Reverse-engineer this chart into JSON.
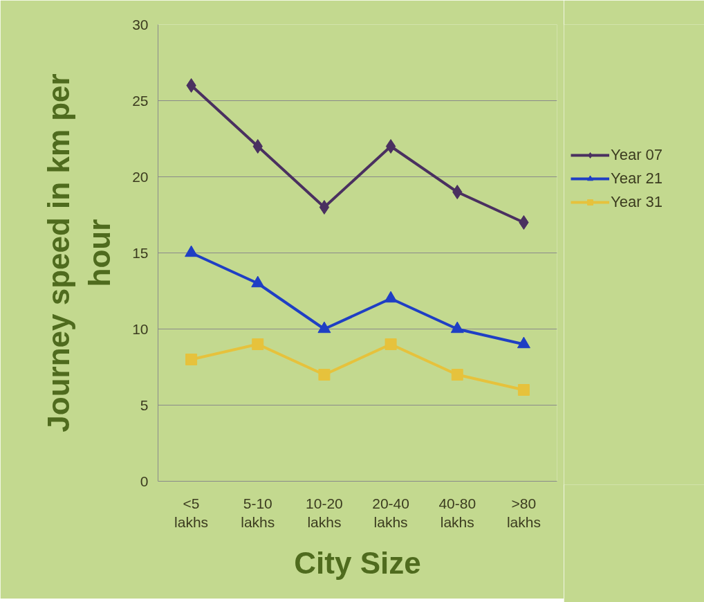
{
  "chart_data": {
    "type": "line",
    "xlabel": "City Size",
    "ylabel": "Journey speed in km per hour",
    "categories": [
      "<5 lakhs",
      "5-10 lakhs",
      "10-20 lakhs",
      "20-40 lakhs",
      "40-80 lakhs",
      ">80 lakhs"
    ],
    "series": [
      {
        "name": "Year 07",
        "color": "#4a3060",
        "marker": "diamond",
        "values": [
          26,
          22,
          18,
          22,
          19,
          17
        ]
      },
      {
        "name": "Year 21",
        "color": "#1f3fc4",
        "marker": "triangle",
        "values": [
          15,
          13,
          10,
          12,
          10,
          9
        ]
      },
      {
        "name": "Year 31",
        "color": "#e6c23c",
        "marker": "square",
        "values": [
          8,
          9,
          7,
          9,
          7,
          6
        ]
      }
    ],
    "ylim": [
      0,
      30
    ],
    "yticks": [
      0,
      5,
      10,
      15,
      20,
      25,
      30
    ],
    "grid": "y",
    "legend": "right",
    "line_style": "solid"
  }
}
